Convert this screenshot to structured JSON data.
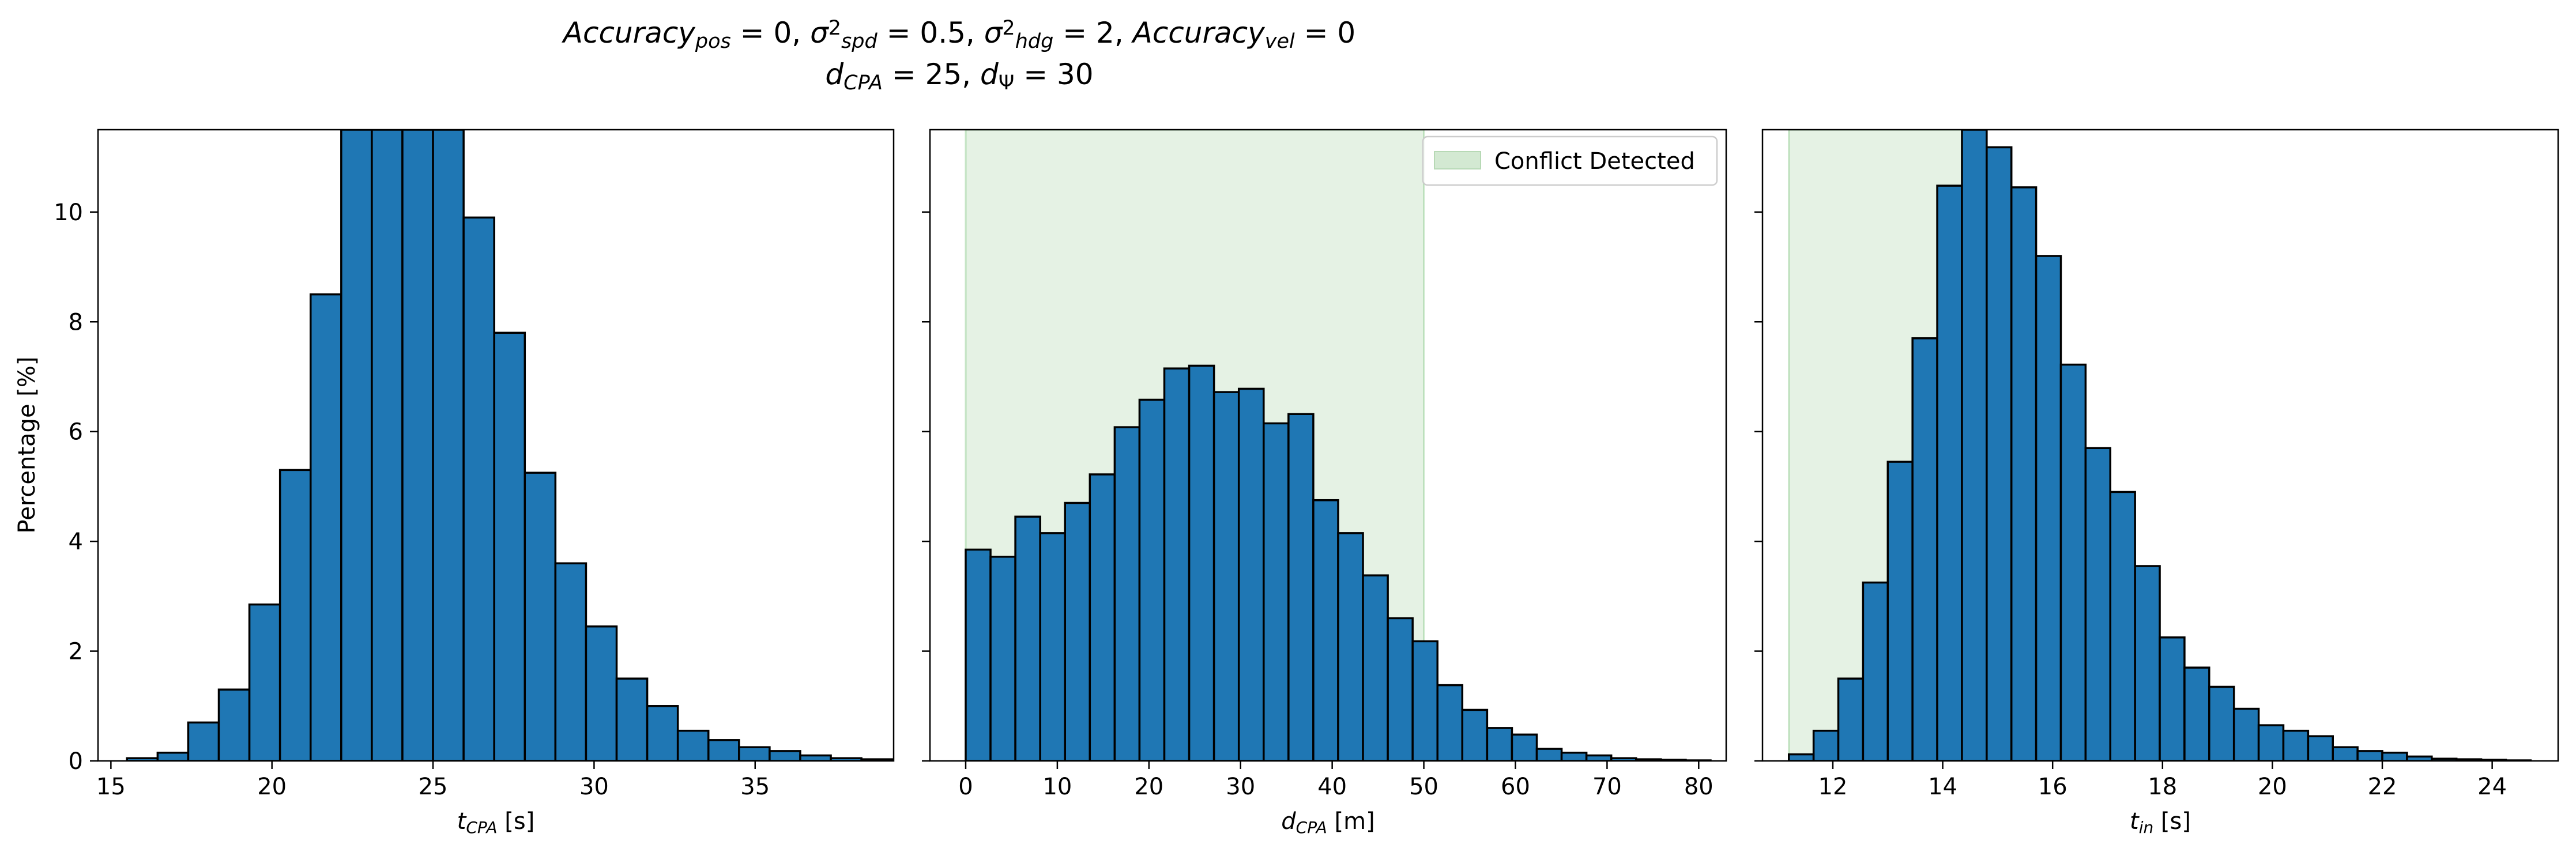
{
  "figure": {
    "title_line1_parts": [
      {
        "t": "Accuracy",
        "i": true
      },
      {
        "t": "pos",
        "i": true,
        "sub": true
      },
      {
        "t": " = 0, "
      },
      {
        "t": "σ",
        "i": true
      },
      {
        "t": "2",
        "sup": true
      },
      {
        "t": "spd",
        "i": true,
        "sub": true
      },
      {
        "t": " = 0.5, "
      },
      {
        "t": "σ",
        "i": true
      },
      {
        "t": "2",
        "sup": true
      },
      {
        "t": "hdg",
        "i": true,
        "sub": true
      },
      {
        "t": " = 2, "
      },
      {
        "t": "Accuracy",
        "i": true
      },
      {
        "t": "vel",
        "i": true,
        "sub": true
      },
      {
        "t": " = 0"
      }
    ],
    "title_line2_parts": [
      {
        "t": "d",
        "i": true
      },
      {
        "t": "CPA",
        "i": true,
        "sub": true
      },
      {
        "t": " = 25, "
      },
      {
        "t": "d",
        "i": true
      },
      {
        "t": "Ψ",
        "sub": true
      },
      {
        "t": " = 30"
      }
    ],
    "shared_ylabel": "Percentage [%]"
  },
  "chart_data": [
    {
      "type": "bar",
      "xlabel_parts": [
        {
          "t": "t",
          "i": true
        },
        {
          "t": "CPA",
          "i": true,
          "sub": true
        },
        {
          "t": " [s]"
        }
      ],
      "bin_start": 15.5,
      "bin_width": 0.95,
      "values": [
        0.05,
        0.15,
        0.7,
        1.3,
        2.85,
        5.3,
        8.5,
        11.5,
        11.5,
        11.5,
        11.5,
        9.9,
        7.8,
        5.25,
        3.6,
        2.45,
        1.5,
        1.0,
        0.55,
        0.38,
        0.25,
        0.18,
        0.1,
        0.05,
        0.03,
        0.02,
        0.02,
        0.01,
        0.01,
        0.0,
        0.01
      ],
      "xlim": [
        14.6,
        39.3
      ],
      "ylim": [
        0,
        11.5
      ],
      "xticks": [
        15,
        20,
        25,
        30,
        35
      ],
      "yticks": [
        0,
        2,
        4,
        6,
        8,
        10
      ],
      "shaded_region": null,
      "bar_color": "#1f77b4"
    },
    {
      "type": "bar",
      "xlabel_parts": [
        {
          "t": "d",
          "i": true
        },
        {
          "t": "CPA",
          "i": true,
          "sub": true
        },
        {
          "t": " [m]"
        }
      ],
      "bin_start": 0,
      "bin_width": 2.71,
      "values": [
        3.85,
        3.72,
        4.45,
        4.15,
        4.7,
        5.22,
        6.08,
        6.58,
        7.15,
        7.2,
        6.72,
        6.78,
        6.15,
        6.32,
        4.75,
        4.15,
        3.38,
        2.6,
        2.18,
        1.38,
        0.93,
        0.6,
        0.48,
        0.22,
        0.15,
        0.1,
        0.05,
        0.03,
        0.02,
        0.01
      ],
      "xlim": [
        -3.9,
        83.0
      ],
      "ylim": [
        0,
        11.5
      ],
      "xticks": [
        0,
        10,
        20,
        30,
        40,
        50,
        60,
        70,
        80
      ],
      "yticks": [
        0,
        2,
        4,
        6,
        8,
        10
      ],
      "shaded_region": [
        0,
        50
      ],
      "bar_color": "#1f77b4",
      "legend": {
        "label": "Conflict Detected",
        "color": "#d3e9d2",
        "position": "top-right"
      }
    },
    {
      "type": "bar",
      "xlabel_parts": [
        {
          "t": "t",
          "i": true
        },
        {
          "t": "in",
          "i": true,
          "sub": true
        },
        {
          "t": " [s]"
        }
      ],
      "bin_start": 11.2,
      "bin_width": 0.45,
      "values": [
        0.12,
        0.55,
        1.5,
        3.25,
        5.45,
        7.7,
        10.48,
        11.5,
        11.18,
        10.45,
        9.2,
        7.22,
        5.7,
        4.9,
        3.55,
        2.25,
        1.7,
        1.35,
        0.95,
        0.65,
        0.55,
        0.45,
        0.25,
        0.18,
        0.15,
        0.08,
        0.04,
        0.03,
        0.02,
        0.01
      ],
      "xlim": [
        10.72,
        25.2
      ],
      "ylim": [
        0,
        11.5
      ],
      "xticks": [
        12,
        14,
        16,
        18,
        20,
        22,
        24
      ],
      "yticks": [
        0,
        2,
        4,
        6,
        8,
        10
      ],
      "shaded_region": [
        11.2,
        14.6
      ],
      "bar_color": "#1f77b4"
    }
  ]
}
